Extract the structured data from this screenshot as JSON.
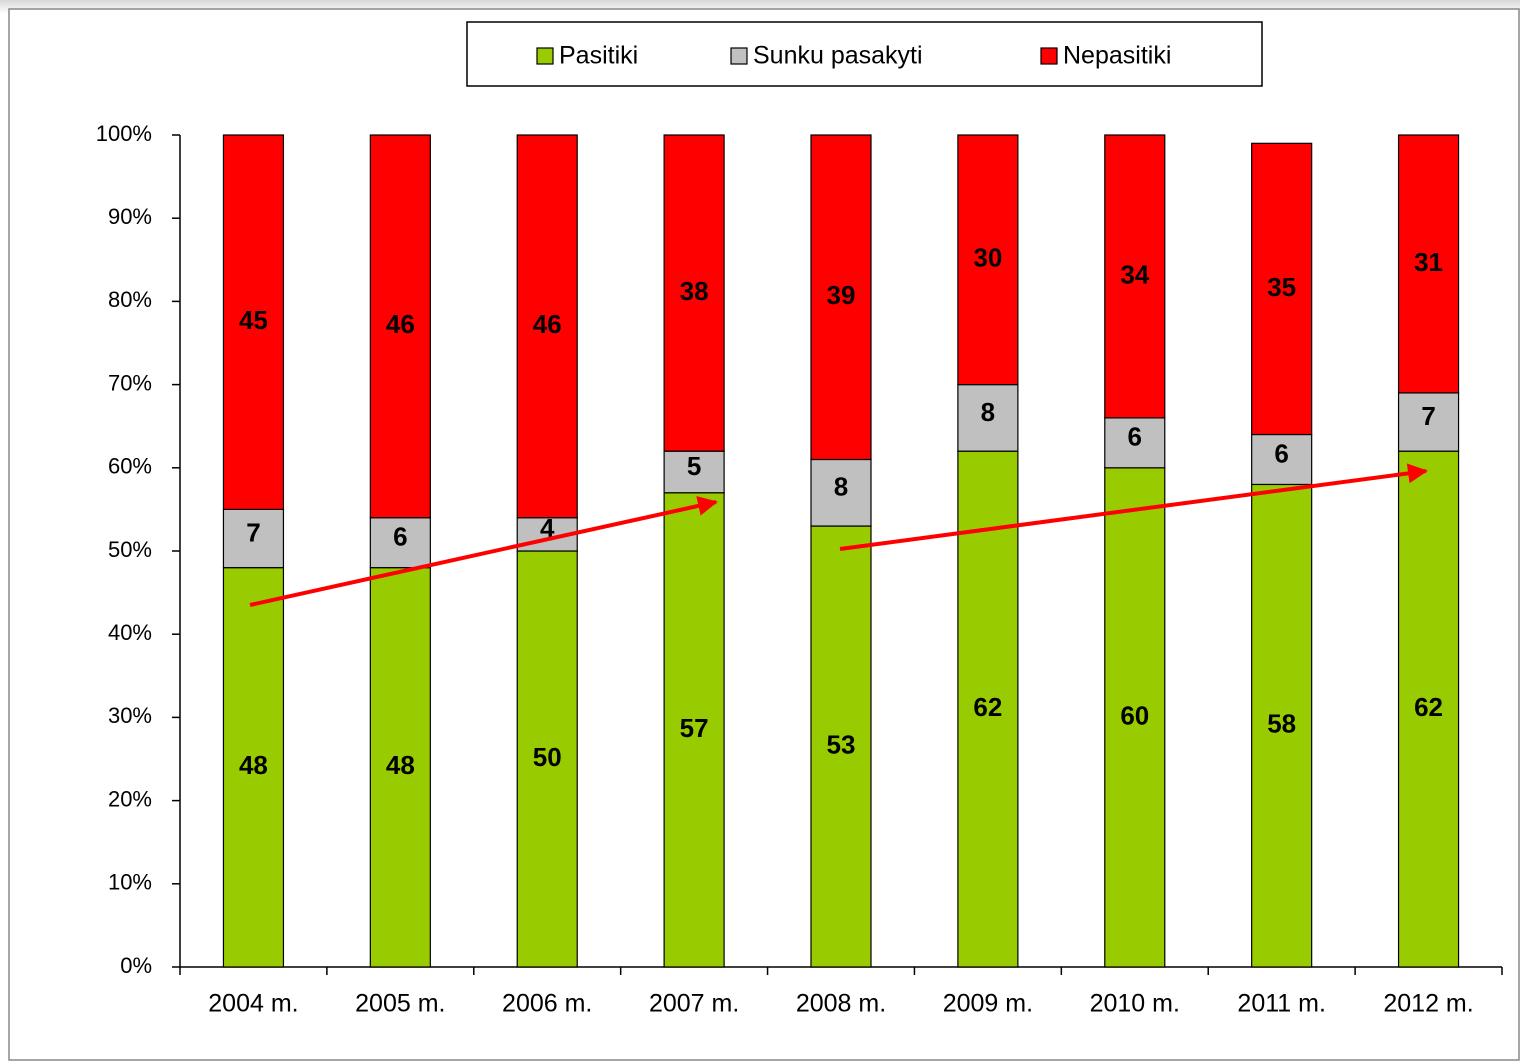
{
  "chart_data": {
    "type": "stacked_bar",
    "categories": [
      "2004 m.",
      "2005 m.",
      "2006 m.",
      "2007 m.",
      "2008 m.",
      "2009 m.",
      "2010 m.",
      "2011 m.",
      "2012 m."
    ],
    "series": [
      {
        "name": "Pasitiki",
        "color": "#99cc00",
        "values": [
          48,
          48,
          50,
          57,
          53,
          62,
          60,
          58,
          62
        ]
      },
      {
        "name": "Sunku pasakyti",
        "color": "#c0c0c0",
        "values": [
          7,
          6,
          4,
          5,
          8,
          8,
          6,
          6,
          7
        ]
      },
      {
        "name": "Nepasitiki",
        "color": "#ff0000",
        "values": [
          45,
          46,
          46,
          38,
          39,
          30,
          34,
          35,
          31
        ]
      }
    ],
    "ylim": [
      0,
      100
    ],
    "yticks": [
      {
        "value": 0,
        "label": "0%"
      },
      {
        "value": 10,
        "label": "10%"
      },
      {
        "value": 20,
        "label": "20%"
      },
      {
        "value": 30,
        "label": "30%"
      },
      {
        "value": 40,
        "label": "40%"
      },
      {
        "value": 50,
        "label": "50%"
      },
      {
        "value": 60,
        "label": "60%"
      },
      {
        "value": 70,
        "label": "70%"
      },
      {
        "value": 80,
        "label": "80%"
      },
      {
        "value": 90,
        "label": "90%"
      },
      {
        "value": 100,
        "label": "100%"
      }
    ],
    "legend": "top"
  }
}
